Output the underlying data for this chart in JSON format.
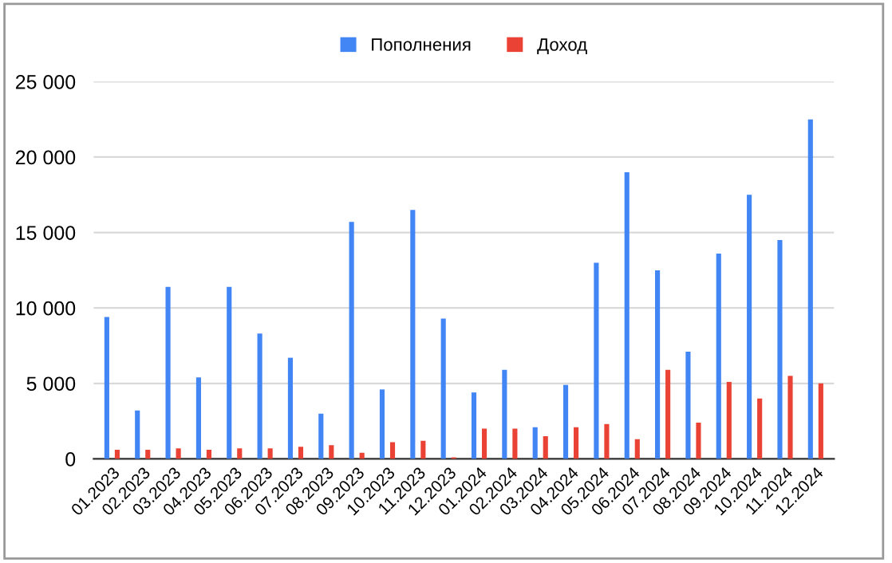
{
  "chart_data": {
    "type": "bar",
    "categories": [
      "01.2023",
      "02.2023",
      "03.2023",
      "04.2023",
      "05.2023",
      "06.2023",
      "07.2023",
      "08.2023",
      "09.2023",
      "10.2023",
      "11.2023",
      "12.2023",
      "01.2024",
      "02.2024",
      "03.2024",
      "04.2024",
      "05.2024",
      "06.2024",
      "07.2024",
      "08.2024",
      "09.2024",
      "10.2024",
      "11.2024",
      "12.2024"
    ],
    "series": [
      {
        "name": "Пополнения",
        "color": "#4285f4",
        "values": [
          9400,
          3200,
          11400,
          5400,
          11400,
          8300,
          6700,
          3000,
          15700,
          4600,
          16500,
          9300,
          4400,
          5900,
          2100,
          4900,
          13000,
          19000,
          12500,
          7100,
          13600,
          17500,
          14500,
          22500
        ]
      },
      {
        "name": "Доход",
        "color": "#ea4335",
        "values": [
          600,
          600,
          700,
          600,
          700,
          700,
          800,
          900,
          400,
          1100,
          1200,
          100,
          2000,
          2000,
          1500,
          2100,
          2300,
          1300,
          5900,
          2400,
          5100,
          4000,
          5500,
          5000
        ]
      }
    ],
    "ylim": [
      0,
      25000
    ],
    "yticks": [
      {
        "value": 0,
        "label": "0"
      },
      {
        "value": 5000,
        "label": "5 000"
      },
      {
        "value": 10000,
        "label": "10 000"
      },
      {
        "value": 15000,
        "label": "15 000"
      },
      {
        "value": 20000,
        "label": "20 000"
      },
      {
        "value": 25000,
        "label": "25 000"
      }
    ],
    "grid": "y",
    "legend": "top"
  }
}
